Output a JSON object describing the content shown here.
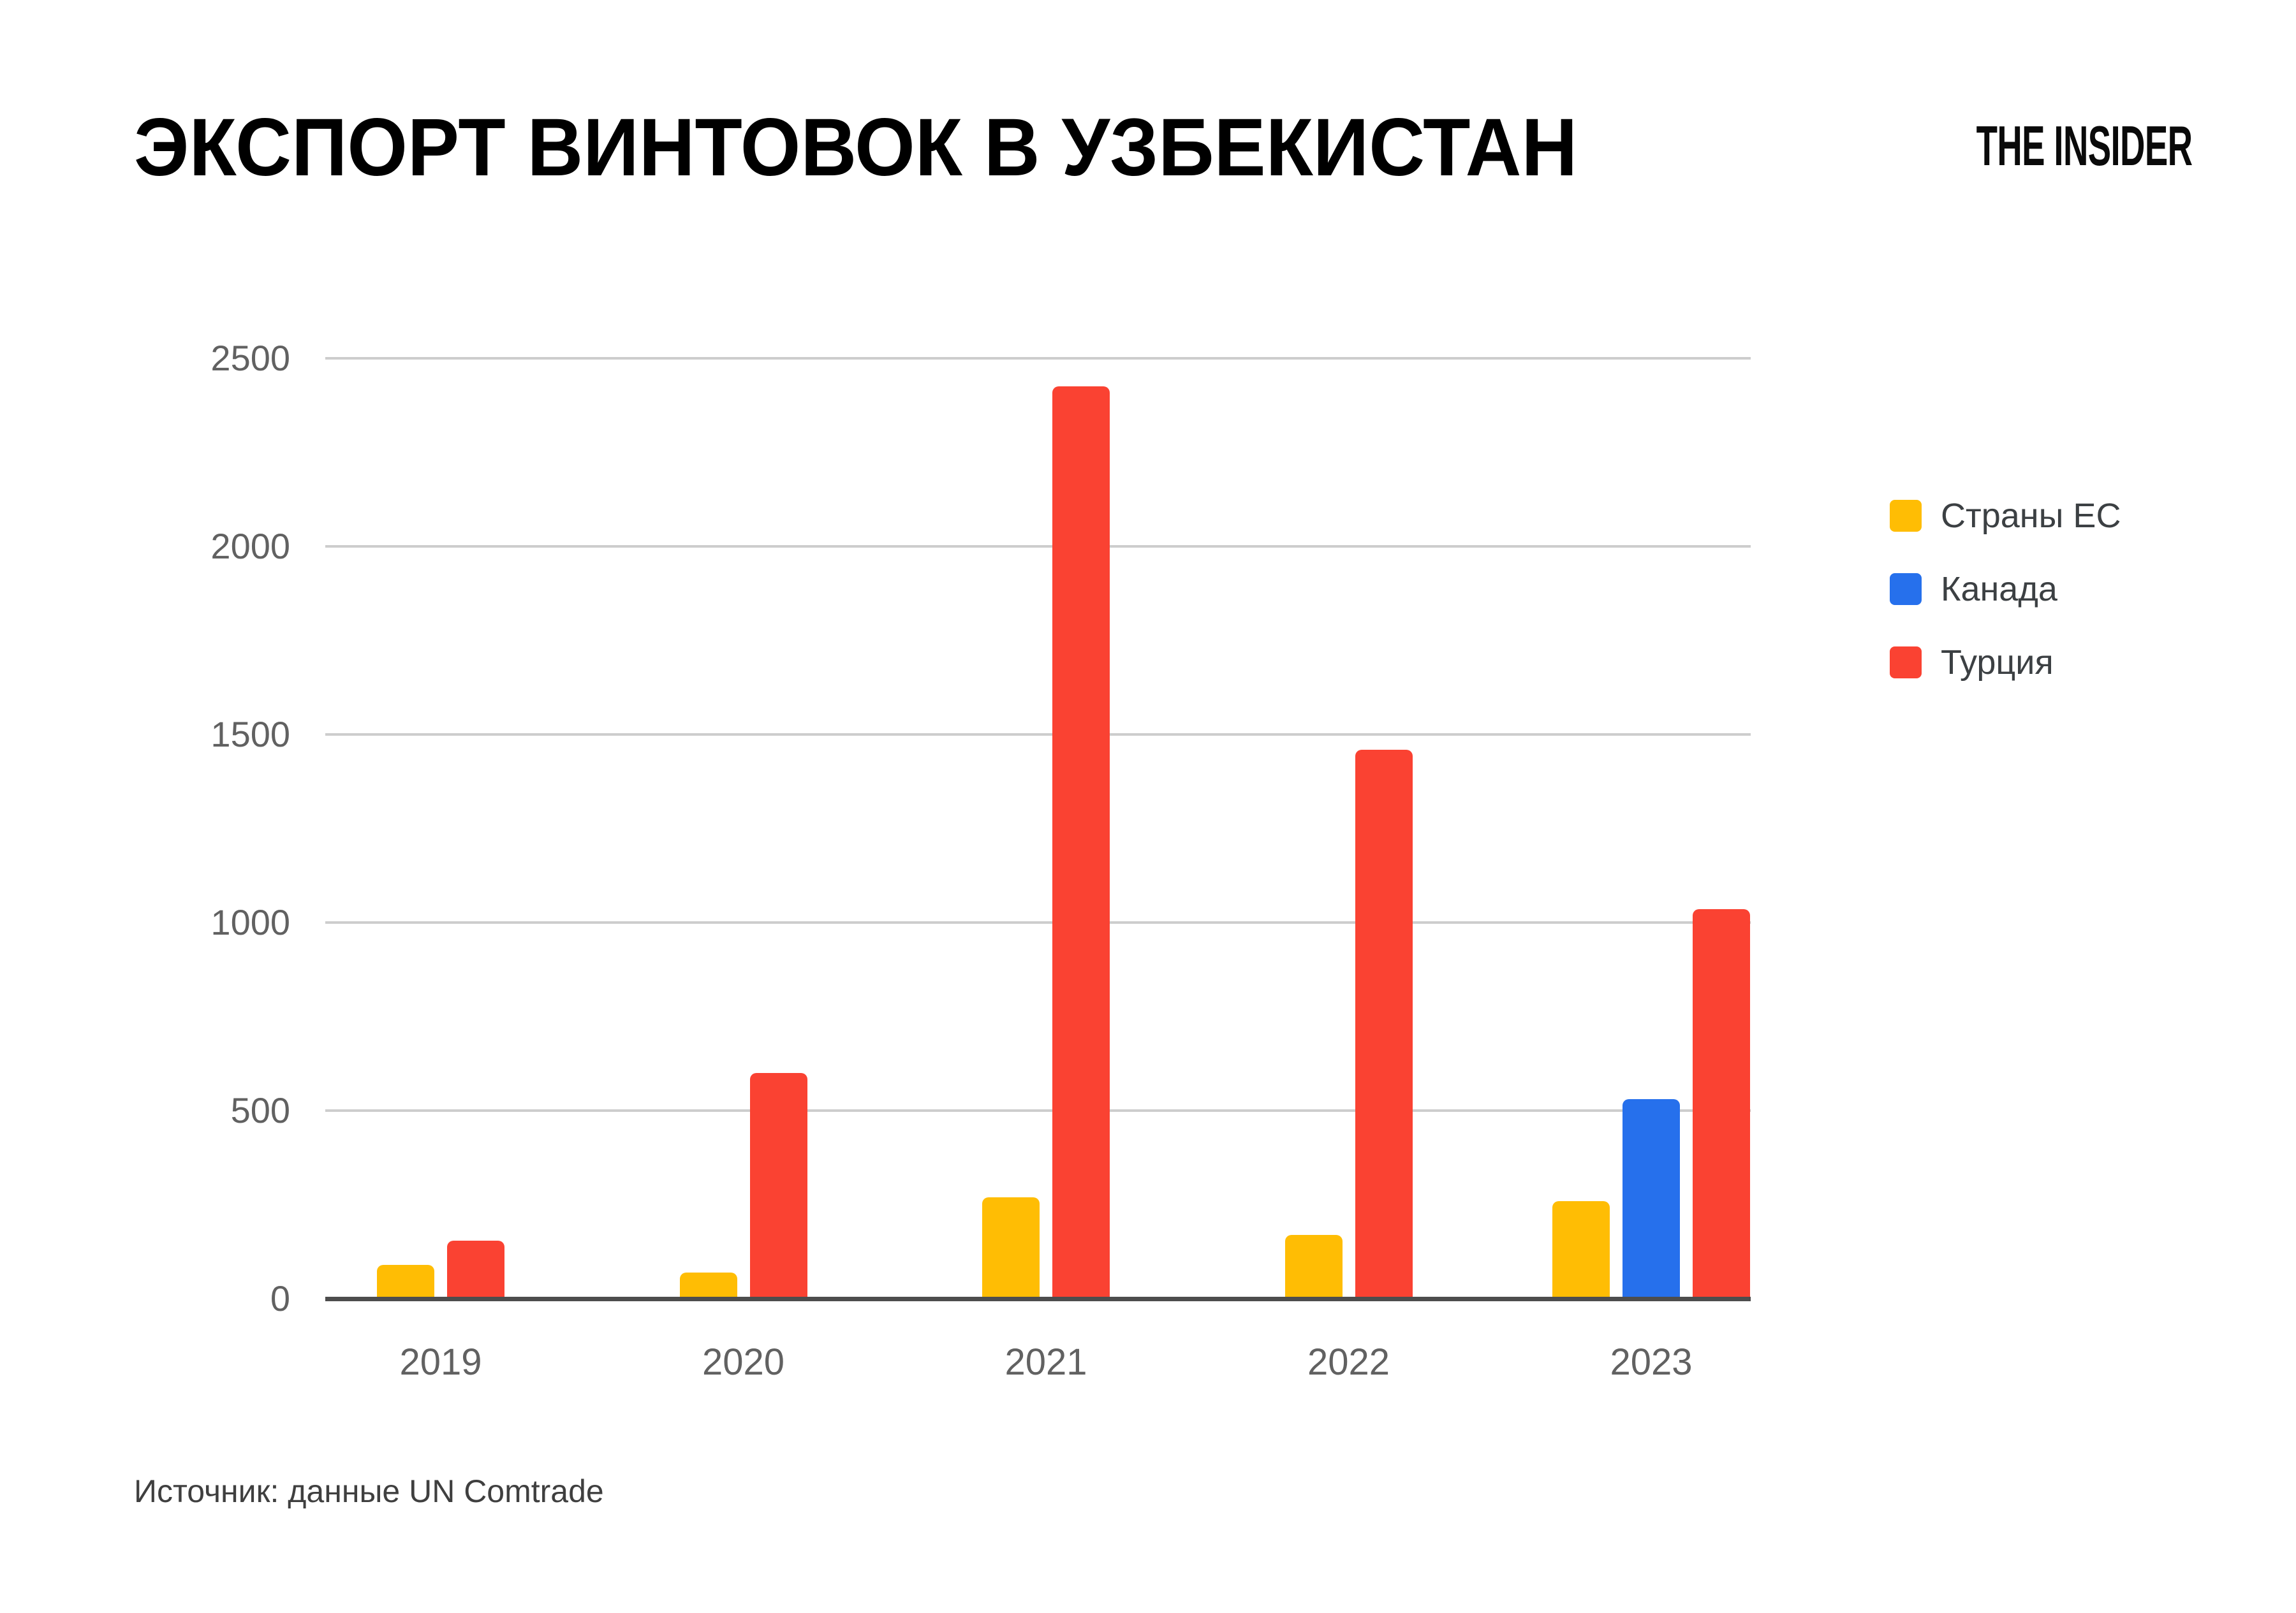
{
  "header": {
    "title": "ЭКСПОРТ ВИНТОВОК В УЗБЕКИСТАН",
    "logo": "THE INSIDER"
  },
  "footer": {
    "source": "Источник: данные UN Comtrade"
  },
  "colors": {
    "eu_yellow": "#ffbd04",
    "canada_blue": "#2670ec",
    "turkey_red": "#fa4232",
    "gridline": "#cdcdcd",
    "axis": "#4d4d4d",
    "tick_text": "#616161"
  },
  "chart_data": {
    "type": "bar",
    "title": "ЭКСПОРТ ВИНТОВОК В УЗБЕКИСТАН",
    "categories": [
      "2019",
      "2020",
      "2021",
      "2022",
      "2023"
    ],
    "series": [
      {
        "key": "eu",
        "name": "Страны ЕС",
        "color": "#ffbd04",
        "values": [
          90,
          70,
          270,
          170,
          260
        ]
      },
      {
        "key": "canada",
        "name": "Канада",
        "color": "#2670ec",
        "values": [
          0,
          0,
          0,
          0,
          530
        ]
      },
      {
        "key": "turkey",
        "name": "Турция",
        "color": "#fa4232",
        "values": [
          155,
          600,
          2425,
          1460,
          1035
        ]
      }
    ],
    "xlabel": "",
    "ylabel": "",
    "ylim": [
      0,
      2500
    ],
    "yticks": [
      0,
      500,
      1000,
      1500,
      2000,
      2500
    ],
    "grid": true,
    "legend_position": "right",
    "source": "Источник: данные UN Comtrade"
  }
}
